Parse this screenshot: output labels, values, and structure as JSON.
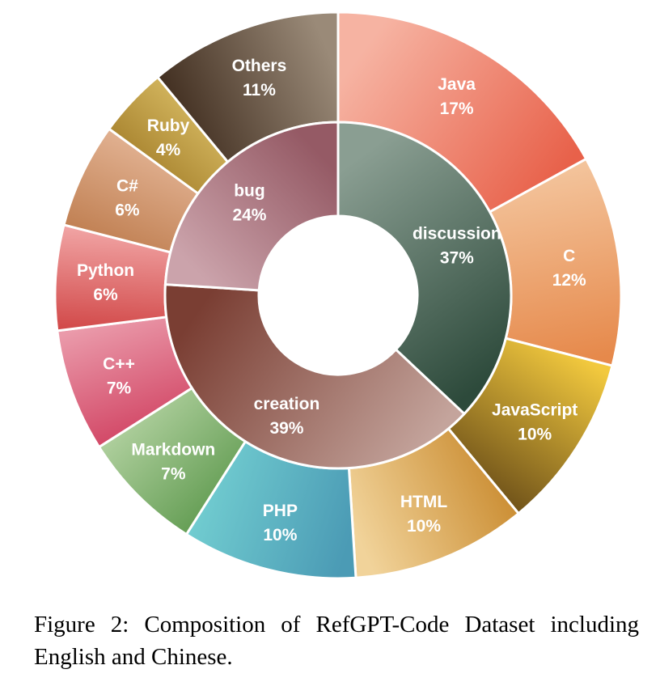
{
  "caption": "Figure 2:  Composition of RefGPT-Code Dataset including English and Chinese.",
  "chart_data": {
    "type": "pie",
    "subtype": "nested-donut",
    "title": "",
    "inner": [
      {
        "name": "discussion",
        "value": 37,
        "label": "37%",
        "colors": [
          "#8a9e92",
          "#2d4a3b"
        ]
      },
      {
        "name": "creation",
        "value": 39,
        "label": "39%",
        "colors": [
          "#c4a49c",
          "#7a3e33"
        ]
      },
      {
        "name": "bug",
        "value": 24,
        "label": "24%",
        "colors": [
          "#cba3ab",
          "#955a65"
        ]
      }
    ],
    "outer": [
      {
        "name": "Java",
        "value": 17,
        "label": "17%",
        "colors": [
          "#f6b3a2",
          "#e8614a"
        ]
      },
      {
        "name": "C",
        "value": 12,
        "label": "12%",
        "colors": [
          "#f4c7a0",
          "#e6894b"
        ]
      },
      {
        "name": "JavaScript",
        "value": 10,
        "label": "10%",
        "colors": [
          "#f2c93e",
          "#6b4e18"
        ]
      },
      {
        "name": "HTML",
        "value": 10,
        "label": "10%",
        "colors": [
          "#c98a2e",
          "#f1d39a"
        ]
      },
      {
        "name": "PHP",
        "value": 10,
        "label": "10%",
        "colors": [
          "#4b9bb5",
          "#74d0d2"
        ]
      },
      {
        "name": "Markdown",
        "value": 7,
        "label": "7%",
        "colors": [
          "#5f9a4f",
          "#b6d4a4"
        ]
      },
      {
        "name": "C++",
        "value": 7,
        "label": "7%",
        "colors": [
          "#d04060",
          "#ea9aaa"
        ]
      },
      {
        "name": "Python",
        "value": 6,
        "label": "6%",
        "colors": [
          "#d24a4a",
          "#f2a8a8"
        ]
      },
      {
        "name": "C#",
        "value": 6,
        "label": "6%",
        "colors": [
          "#bf7e50",
          "#e6b89a"
        ]
      },
      {
        "name": "Ruby",
        "value": 4,
        "label": "4%",
        "colors": [
          "#a07a26",
          "#dcc068"
        ]
      },
      {
        "name": "Others",
        "value": 11,
        "label": "11%",
        "colors": [
          "#3d2a1c",
          "#9a8a78"
        ]
      }
    ]
  }
}
